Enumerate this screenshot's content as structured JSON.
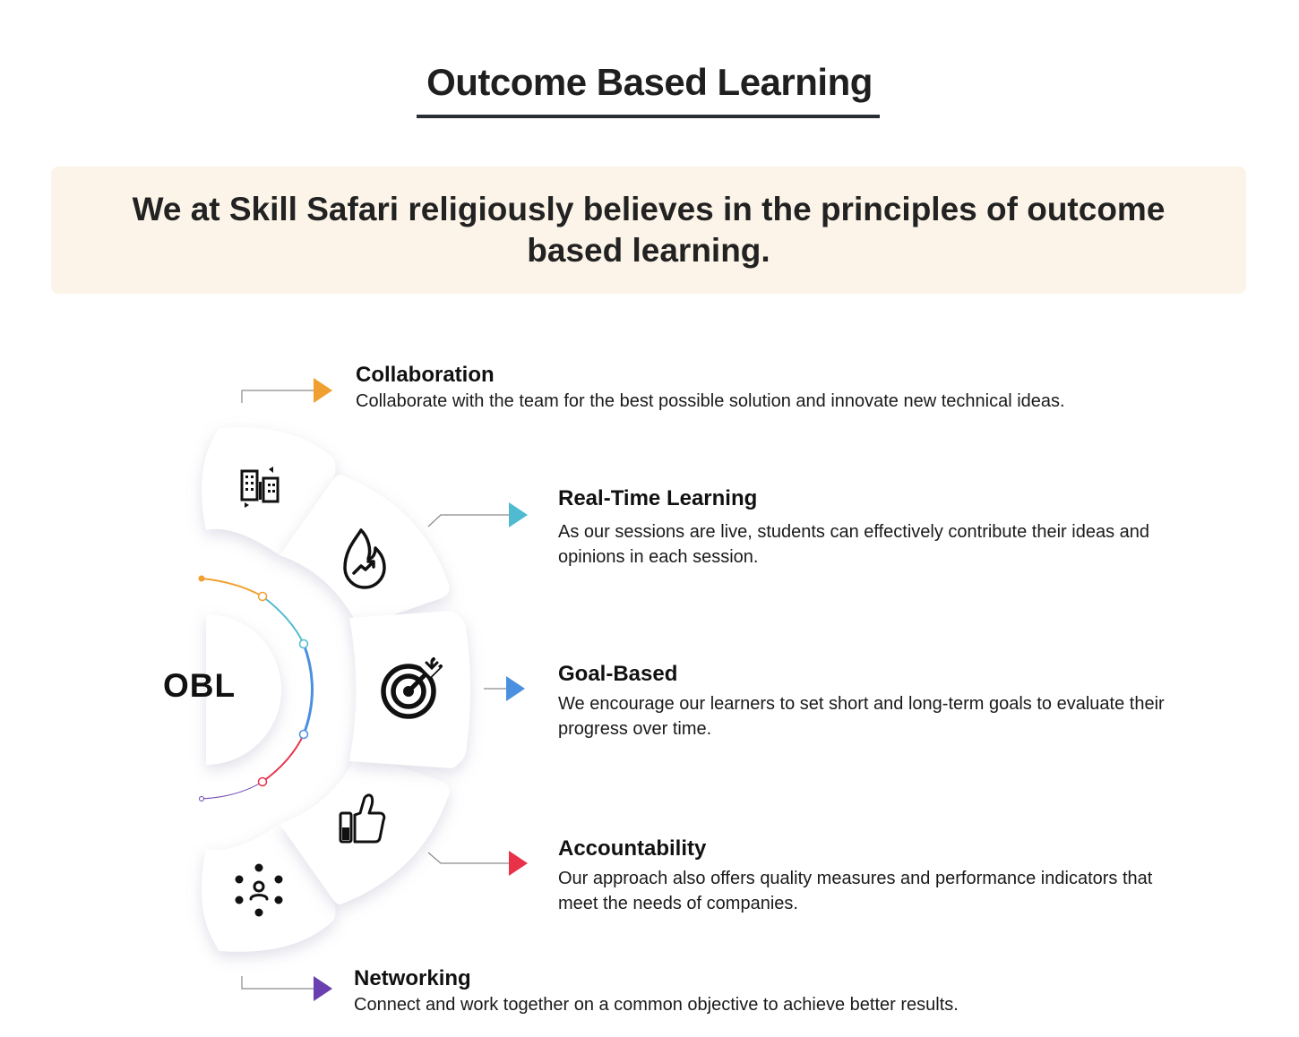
{
  "header": {
    "title": "Outcome Based Learning"
  },
  "banner": {
    "text": "We at Skill Safari religiously believes in the principles of outcome based learning."
  },
  "hub": {
    "label": "OBL"
  },
  "items": [
    {
      "title": "Collaboration",
      "description": "Collaborate with the team for the best possible solution and innovate new technical ideas.",
      "icon": "building-icon",
      "arrow_color": "#f0a030"
    },
    {
      "title": "Real-Time Learning",
      "description": "As our sessions are live, students can effectively contribute their ideas and opinions in each session.",
      "icon": "flame-trend-icon",
      "arrow_color": "#4fbad0"
    },
    {
      "title": "Goal-Based",
      "description": "We encourage our learners to set short and long-term goals to evaluate their progress over time.",
      "icon": "target-icon",
      "arrow_color": "#4a8fe0"
    },
    {
      "title": "Accountability",
      "description": "Our approach also offers quality measures and performance indicators that meet the needs of companies.",
      "icon": "thumbs-up-icon",
      "arrow_color": "#e8324a"
    },
    {
      "title": "Networking",
      "description": "Connect and work together on a common objective to achieve better results.",
      "icon": "people-network-icon",
      "arrow_color": "#6a3fb0"
    }
  ],
  "arc_colors": [
    "#f0a030",
    "#4fbad0",
    "#4a8fe0",
    "#e8324a",
    "#6a3fb0"
  ]
}
